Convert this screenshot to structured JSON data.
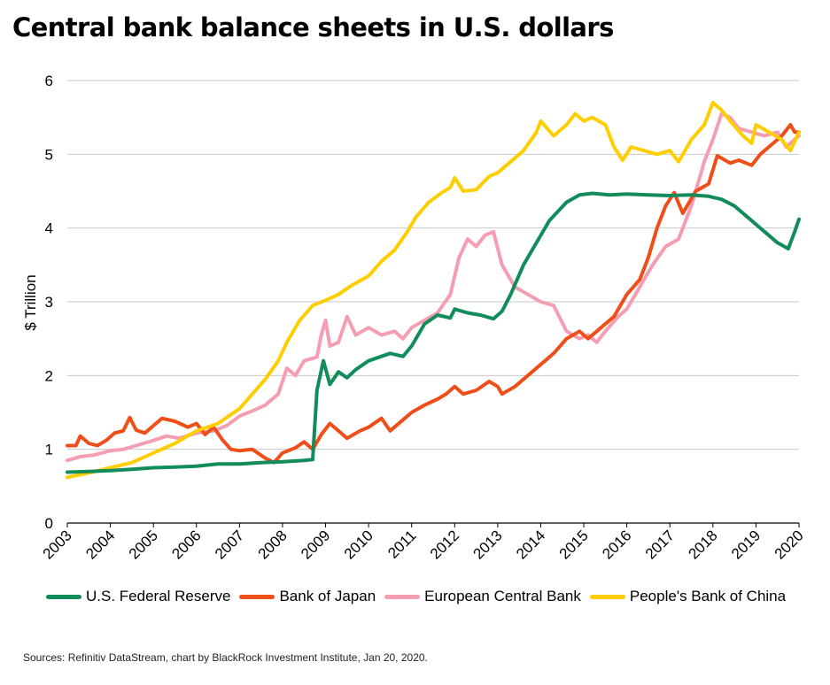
{
  "title": "Central bank balance sheets in U.S. dollars",
  "source": "Sources: Refinitiv DataStream, chart by BlackRock Investment Institute, Jan 20, 2020.",
  "chart_data": {
    "type": "line",
    "ylabel": "$ Trillion",
    "xlabel": "",
    "ylim": [
      0,
      6
    ],
    "xlim": [
      2003,
      2020
    ],
    "yticks": [
      "0",
      "1",
      "2",
      "3",
      "4",
      "5",
      "6"
    ],
    "xticks": [
      "2003",
      "2004",
      "2005",
      "2006",
      "2007",
      "2008",
      "2009",
      "2010",
      "2011",
      "2012",
      "2013",
      "2014",
      "2015",
      "2016",
      "2017",
      "2018",
      "2019",
      "2020"
    ],
    "grid": true,
    "legend_position": "bottom",
    "series": [
      {
        "name": "U.S. Federal Reserve",
        "color": "#128c5a",
        "points": [
          [
            2003.0,
            0.69
          ],
          [
            2003.5,
            0.7
          ],
          [
            2004.0,
            0.71
          ],
          [
            2004.5,
            0.73
          ],
          [
            2005.0,
            0.75
          ],
          [
            2005.5,
            0.76
          ],
          [
            2006.0,
            0.77
          ],
          [
            2006.5,
            0.8
          ],
          [
            2007.0,
            0.8
          ],
          [
            2007.5,
            0.82
          ],
          [
            2008.0,
            0.83
          ],
          [
            2008.5,
            0.85
          ],
          [
            2008.7,
            0.86
          ],
          [
            2008.8,
            1.8
          ],
          [
            2008.95,
            2.2
          ],
          [
            2009.1,
            1.88
          ],
          [
            2009.3,
            2.05
          ],
          [
            2009.5,
            1.97
          ],
          [
            2009.7,
            2.08
          ],
          [
            2010.0,
            2.2
          ],
          [
            2010.5,
            2.3
          ],
          [
            2010.8,
            2.26
          ],
          [
            2011.0,
            2.4
          ],
          [
            2011.3,
            2.7
          ],
          [
            2011.6,
            2.82
          ],
          [
            2011.9,
            2.78
          ],
          [
            2012.0,
            2.9
          ],
          [
            2012.3,
            2.85
          ],
          [
            2012.6,
            2.82
          ],
          [
            2012.9,
            2.77
          ],
          [
            2013.1,
            2.87
          ],
          [
            2013.3,
            3.1
          ],
          [
            2013.6,
            3.5
          ],
          [
            2013.9,
            3.8
          ],
          [
            2014.2,
            4.1
          ],
          [
            2014.6,
            4.35
          ],
          [
            2014.9,
            4.45
          ],
          [
            2015.2,
            4.47
          ],
          [
            2015.6,
            4.45
          ],
          [
            2016.0,
            4.46
          ],
          [
            2016.5,
            4.45
          ],
          [
            2017.0,
            4.44
          ],
          [
            2017.5,
            4.45
          ],
          [
            2017.9,
            4.43
          ],
          [
            2018.2,
            4.39
          ],
          [
            2018.5,
            4.3
          ],
          [
            2018.8,
            4.15
          ],
          [
            2019.2,
            3.95
          ],
          [
            2019.5,
            3.8
          ],
          [
            2019.75,
            3.72
          ],
          [
            2019.9,
            3.95
          ],
          [
            2020.0,
            4.12
          ]
        ]
      },
      {
        "name": "Bank of Japan",
        "color": "#f04e19",
        "points": [
          [
            2003.0,
            1.05
          ],
          [
            2003.2,
            1.05
          ],
          [
            2003.3,
            1.18
          ],
          [
            2003.5,
            1.08
          ],
          [
            2003.7,
            1.05
          ],
          [
            2003.9,
            1.12
          ],
          [
            2004.1,
            1.22
          ],
          [
            2004.3,
            1.25
          ],
          [
            2004.45,
            1.43
          ],
          [
            2004.6,
            1.26
          ],
          [
            2004.8,
            1.22
          ],
          [
            2005.0,
            1.32
          ],
          [
            2005.2,
            1.42
          ],
          [
            2005.5,
            1.38
          ],
          [
            2005.8,
            1.3
          ],
          [
            2006.0,
            1.35
          ],
          [
            2006.2,
            1.2
          ],
          [
            2006.4,
            1.3
          ],
          [
            2006.6,
            1.13
          ],
          [
            2006.8,
            1.0
          ],
          [
            2007.0,
            0.98
          ],
          [
            2007.3,
            1.0
          ],
          [
            2007.6,
            0.88
          ],
          [
            2007.8,
            0.82
          ],
          [
            2008.0,
            0.95
          ],
          [
            2008.3,
            1.02
          ],
          [
            2008.5,
            1.1
          ],
          [
            2008.7,
            1.0
          ],
          [
            2008.9,
            1.2
          ],
          [
            2009.1,
            1.35
          ],
          [
            2009.3,
            1.25
          ],
          [
            2009.5,
            1.15
          ],
          [
            2009.8,
            1.25
          ],
          [
            2010.0,
            1.3
          ],
          [
            2010.3,
            1.42
          ],
          [
            2010.5,
            1.25
          ],
          [
            2010.8,
            1.4
          ],
          [
            2011.0,
            1.5
          ],
          [
            2011.3,
            1.6
          ],
          [
            2011.6,
            1.68
          ],
          [
            2011.8,
            1.75
          ],
          [
            2012.0,
            1.85
          ],
          [
            2012.2,
            1.75
          ],
          [
            2012.5,
            1.8
          ],
          [
            2012.8,
            1.92
          ],
          [
            2013.0,
            1.85
          ],
          [
            2013.1,
            1.75
          ],
          [
            2013.4,
            1.85
          ],
          [
            2013.7,
            2.0
          ],
          [
            2014.0,
            2.15
          ],
          [
            2014.3,
            2.3
          ],
          [
            2014.6,
            2.5
          ],
          [
            2014.9,
            2.6
          ],
          [
            2015.1,
            2.5
          ],
          [
            2015.4,
            2.65
          ],
          [
            2015.7,
            2.8
          ],
          [
            2016.0,
            3.1
          ],
          [
            2016.3,
            3.3
          ],
          [
            2016.5,
            3.6
          ],
          [
            2016.7,
            4.0
          ],
          [
            2016.9,
            4.3
          ],
          [
            2017.1,
            4.48
          ],
          [
            2017.3,
            4.2
          ],
          [
            2017.6,
            4.5
          ],
          [
            2017.9,
            4.6
          ],
          [
            2018.1,
            4.98
          ],
          [
            2018.4,
            4.88
          ],
          [
            2018.6,
            4.92
          ],
          [
            2018.9,
            4.85
          ],
          [
            2019.1,
            5.0
          ],
          [
            2019.3,
            5.1
          ],
          [
            2019.6,
            5.25
          ],
          [
            2019.8,
            5.4
          ],
          [
            2019.9,
            5.3
          ],
          [
            2020.0,
            5.3
          ]
        ]
      },
      {
        "name": "European Central Bank",
        "color": "#f59db1",
        "points": [
          [
            2003.0,
            0.85
          ],
          [
            2003.3,
            0.9
          ],
          [
            2003.6,
            0.92
          ],
          [
            2004.0,
            0.98
          ],
          [
            2004.3,
            1.0
          ],
          [
            2004.6,
            1.05
          ],
          [
            2005.0,
            1.12
          ],
          [
            2005.3,
            1.18
          ],
          [
            2005.6,
            1.15
          ],
          [
            2006.0,
            1.22
          ],
          [
            2006.4,
            1.25
          ],
          [
            2006.7,
            1.32
          ],
          [
            2007.0,
            1.45
          ],
          [
            2007.3,
            1.52
          ],
          [
            2007.6,
            1.6
          ],
          [
            2007.9,
            1.75
          ],
          [
            2008.1,
            2.1
          ],
          [
            2008.3,
            2.0
          ],
          [
            2008.5,
            2.2
          ],
          [
            2008.8,
            2.25
          ],
          [
            2008.9,
            2.55
          ],
          [
            2009.0,
            2.75
          ],
          [
            2009.1,
            2.4
          ],
          [
            2009.3,
            2.45
          ],
          [
            2009.5,
            2.8
          ],
          [
            2009.7,
            2.55
          ],
          [
            2010.0,
            2.65
          ],
          [
            2010.3,
            2.55
          ],
          [
            2010.6,
            2.6
          ],
          [
            2010.8,
            2.5
          ],
          [
            2011.0,
            2.65
          ],
          [
            2011.3,
            2.75
          ],
          [
            2011.6,
            2.85
          ],
          [
            2011.9,
            3.1
          ],
          [
            2012.1,
            3.6
          ],
          [
            2012.3,
            3.85
          ],
          [
            2012.5,
            3.75
          ],
          [
            2012.7,
            3.9
          ],
          [
            2012.9,
            3.95
          ],
          [
            2013.1,
            3.5
          ],
          [
            2013.4,
            3.2
          ],
          [
            2013.7,
            3.1
          ],
          [
            2014.0,
            3.0
          ],
          [
            2014.3,
            2.95
          ],
          [
            2014.6,
            2.6
          ],
          [
            2014.9,
            2.5
          ],
          [
            2015.1,
            2.55
          ],
          [
            2015.3,
            2.45
          ],
          [
            2015.5,
            2.6
          ],
          [
            2015.8,
            2.8
          ],
          [
            2016.0,
            2.9
          ],
          [
            2016.3,
            3.2
          ],
          [
            2016.6,
            3.5
          ],
          [
            2016.9,
            3.75
          ],
          [
            2017.2,
            3.85
          ],
          [
            2017.5,
            4.3
          ],
          [
            2017.8,
            4.9
          ],
          [
            2018.0,
            5.2
          ],
          [
            2018.2,
            5.55
          ],
          [
            2018.4,
            5.5
          ],
          [
            2018.6,
            5.35
          ],
          [
            2018.9,
            5.3
          ],
          [
            2019.2,
            5.25
          ],
          [
            2019.5,
            5.3
          ],
          [
            2019.7,
            5.1
          ],
          [
            2019.9,
            5.2
          ],
          [
            2020.0,
            5.25
          ]
        ]
      },
      {
        "name": "People's Bank of China",
        "color": "#ffce00",
        "points": [
          [
            2003.0,
            0.62
          ],
          [
            2003.5,
            0.68
          ],
          [
            2004.0,
            0.75
          ],
          [
            2004.5,
            0.82
          ],
          [
            2005.0,
            0.95
          ],
          [
            2005.5,
            1.08
          ],
          [
            2006.0,
            1.25
          ],
          [
            2006.5,
            1.35
          ],
          [
            2007.0,
            1.55
          ],
          [
            2007.3,
            1.75
          ],
          [
            2007.6,
            1.95
          ],
          [
            2007.9,
            2.2
          ],
          [
            2008.1,
            2.45
          ],
          [
            2008.4,
            2.75
          ],
          [
            2008.7,
            2.95
          ],
          [
            2009.0,
            3.02
          ],
          [
            2009.3,
            3.1
          ],
          [
            2009.6,
            3.22
          ],
          [
            2010.0,
            3.35
          ],
          [
            2010.3,
            3.55
          ],
          [
            2010.6,
            3.7
          ],
          [
            2010.9,
            3.95
          ],
          [
            2011.1,
            4.15
          ],
          [
            2011.4,
            4.35
          ],
          [
            2011.7,
            4.48
          ],
          [
            2011.9,
            4.55
          ],
          [
            2012.0,
            4.68
          ],
          [
            2012.2,
            4.5
          ],
          [
            2012.5,
            4.52
          ],
          [
            2012.8,
            4.7
          ],
          [
            2013.0,
            4.75
          ],
          [
            2013.3,
            4.9
          ],
          [
            2013.6,
            5.05
          ],
          [
            2013.9,
            5.3
          ],
          [
            2014.0,
            5.45
          ],
          [
            2014.3,
            5.25
          ],
          [
            2014.6,
            5.4
          ],
          [
            2014.8,
            5.55
          ],
          [
            2015.0,
            5.45
          ],
          [
            2015.2,
            5.5
          ],
          [
            2015.5,
            5.4
          ],
          [
            2015.7,
            5.1
          ],
          [
            2015.9,
            4.92
          ],
          [
            2016.1,
            5.1
          ],
          [
            2016.4,
            5.05
          ],
          [
            2016.7,
            5.0
          ],
          [
            2017.0,
            5.05
          ],
          [
            2017.2,
            4.9
          ],
          [
            2017.5,
            5.2
          ],
          [
            2017.8,
            5.4
          ],
          [
            2018.0,
            5.7
          ],
          [
            2018.2,
            5.6
          ],
          [
            2018.4,
            5.45
          ],
          [
            2018.7,
            5.25
          ],
          [
            2018.9,
            5.15
          ],
          [
            2019.0,
            5.4
          ],
          [
            2019.3,
            5.3
          ],
          [
            2019.6,
            5.2
          ],
          [
            2019.8,
            5.05
          ],
          [
            2020.0,
            5.3
          ]
        ]
      }
    ]
  }
}
